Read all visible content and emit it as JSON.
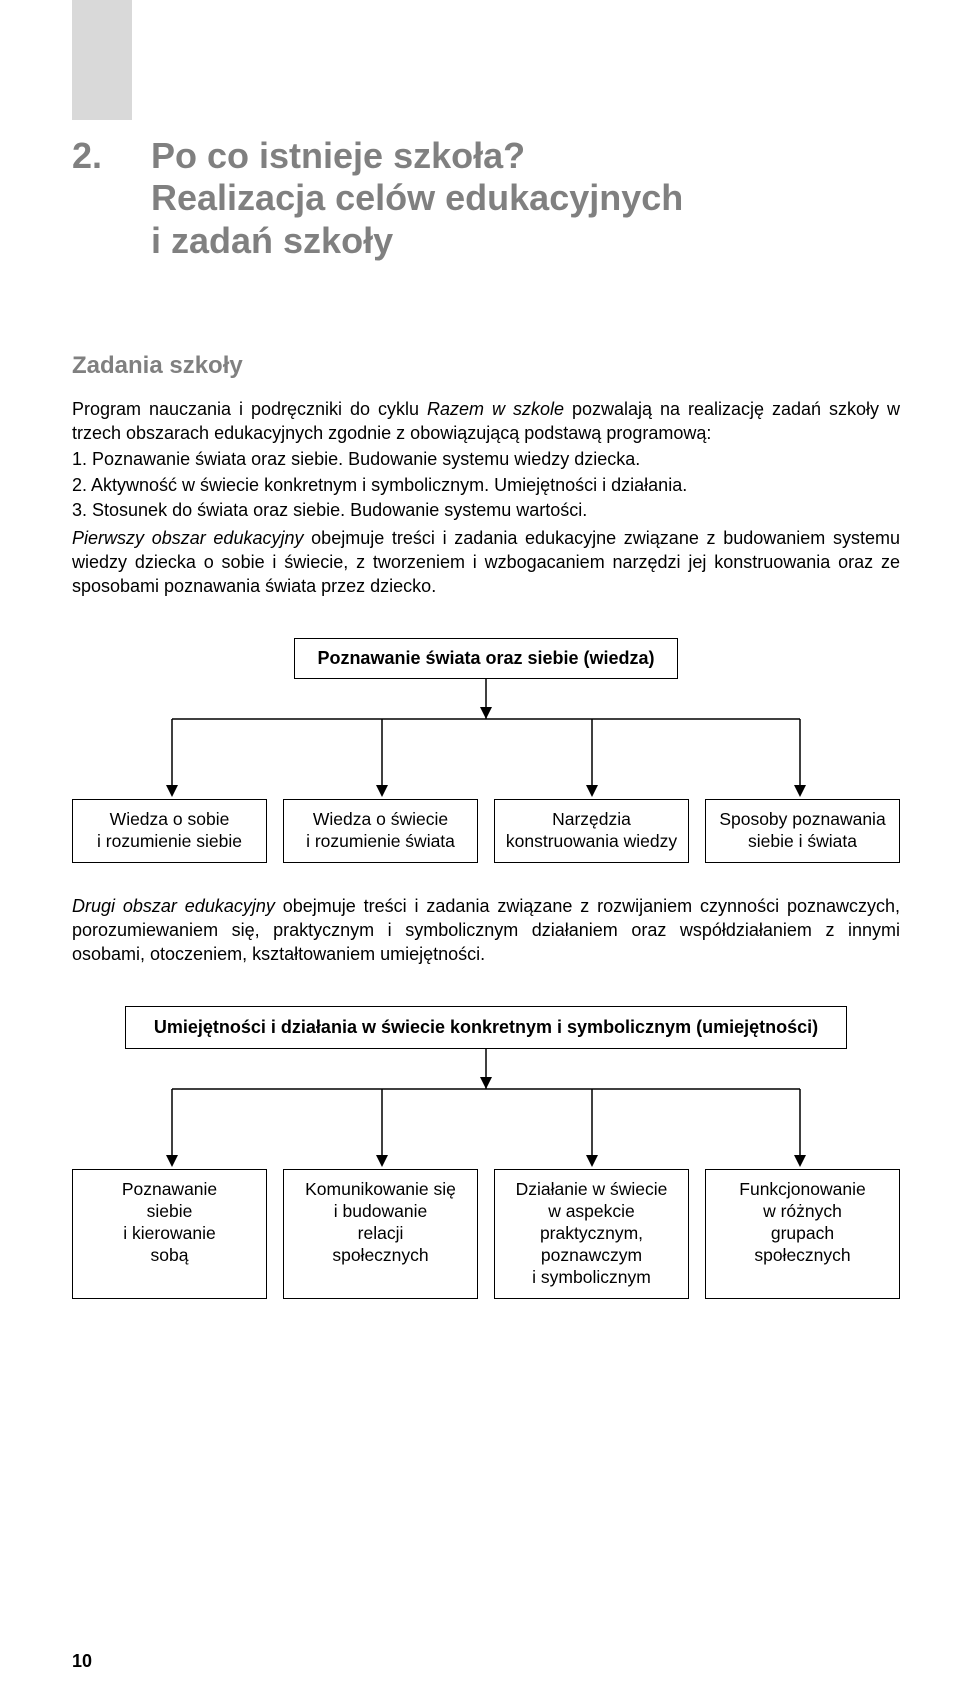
{
  "page_number": "10",
  "chapter": {
    "number": "2.",
    "title_line1": "Po co istnieje szkoła?",
    "title_line2": "Realizacja celów edukacyjnych",
    "title_line3": "i zadań szkoły"
  },
  "section_heading": "Zadania szkoły",
  "paragraphs": {
    "p1_a": "Program nauczania i podręczniki do cyklu ",
    "p1_italic": "Razem w szkole",
    "p1_b": " pozwalają na realizację zadań szkoły w trzech obszarach edukacyjnych zgodnie z obowiązującą podstawą programową:",
    "li1": "1. Poznawanie świata oraz siebie. Budowanie systemu wiedzy dziecka.",
    "li2": "2. Aktywność w świecie konkretnym i symbolicznym. Umiejętności i działania.",
    "li3": "3. Stosunek do świata oraz siebie. Budowanie systemu wartości.",
    "p2": "Pierwszy obszar edukacyjny obejmuje treści i zadania edukacyjne związane z budowaniem systemu wiedzy dziecka o sobie i świecie, z tworzeniem i wzbogacaniem narzędzi jej konstruowania oraz ze sposobami poznawania świata przez dziecko.",
    "p3": "Drugi obszar edukacyjny obejmuje treści i zadania związane z rozwijaniem czynności poznawczych, porozumiewaniem się, praktycznym i symbolicznym działaniem oraz współdziałaniem z innymi osobami, otoczeniem, kształtowaniem umiejętności."
  },
  "diagram1": {
    "root": "Poznawanie świata oraz siebie (wiedza)",
    "leaves": [
      "Wiedza o sobie\ni rozumienie siebie",
      "Wiedza o świecie\ni rozumienie świata",
      "Narzędzia\nkonstruowania wiedzy",
      "Sposoby poznawania\nsiebie i świata"
    ]
  },
  "diagram2": {
    "root": "Umiejętności i działania w świecie konkretnym i symbolicznym (umiejętności)",
    "leaves": [
      "Poznawanie\nsiebie\ni kierowanie\nsobą",
      "Komunikowanie się\ni budowanie\nrelacji\nspołecznych",
      "Działanie w świecie\nw aspekcie\npraktycznym,\npoznawczym\ni symbolicznym",
      "Funkcjonowanie\nw różnych\ngrupach\nspołecznych"
    ]
  },
  "colors": {
    "gray_tab": "#d9d9d9",
    "gray_heading": "#808080",
    "text": "#000000",
    "bg": "#ffffff"
  }
}
